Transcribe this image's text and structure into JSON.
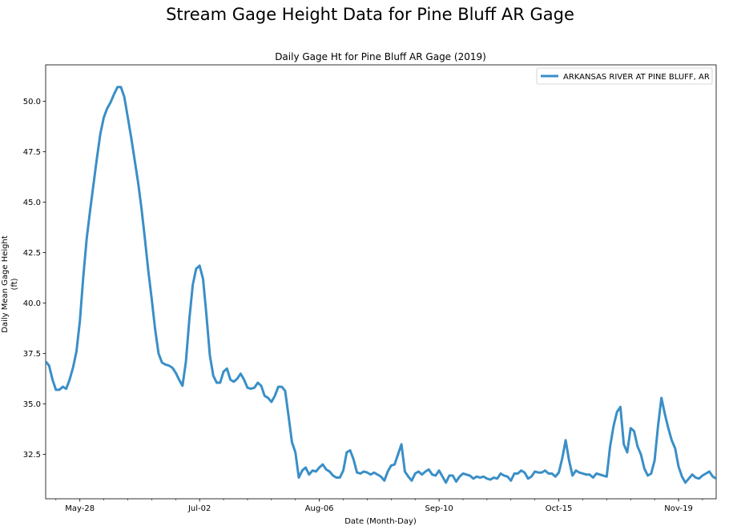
{
  "figure": {
    "suptitle": "Stream Gage Height Data for Pine Bluff AR Gage"
  },
  "chart_data": {
    "type": "line",
    "title": "Daily Gage Ht for Pine Bluff AR Gage (2019)",
    "xlabel": "Date (Month-Day)",
    "ylabel": "Daily Mean Gage Height\n(ft)",
    "xlim": [
      "2019-05-18",
      "2019-11-30"
    ],
    "ylim": [
      30.3,
      51.8
    ],
    "xticks": [
      {
        "date": "2019-05-28",
        "label": "May-28"
      },
      {
        "date": "2019-07-02",
        "label": "Jul-02"
      },
      {
        "date": "2019-08-06",
        "label": "Aug-06"
      },
      {
        "date": "2019-09-10",
        "label": "Sep-10"
      },
      {
        "date": "2019-10-15",
        "label": "Oct-15"
      },
      {
        "date": "2019-11-19",
        "label": "Nov-19"
      }
    ],
    "yticks": [
      32.5,
      35.0,
      37.5,
      40.0,
      42.5,
      45.0,
      47.5,
      50.0
    ],
    "ytick_labels": [
      "32.5",
      "35.0",
      "37.5",
      "40.0",
      "42.5",
      "45.0",
      "47.5",
      "50.0"
    ],
    "grid": false,
    "legend": "top-right",
    "series": [
      {
        "name": "ARKANSAS RIVER AT PINE BLUFF, AR",
        "color": "#3a8fc7",
        "start_date": "2019-05-18",
        "values": [
          37.1,
          36.9,
          36.2,
          35.7,
          35.7,
          35.85,
          35.75,
          36.2,
          36.8,
          37.6,
          39.1,
          41.3,
          43.2,
          44.6,
          45.9,
          47.2,
          48.4,
          49.2,
          49.65,
          49.95,
          50.35,
          50.7,
          50.7,
          50.2,
          49.2,
          48.2,
          47.1,
          46.0,
          44.7,
          43.2,
          41.6,
          40.2,
          38.7,
          37.5,
          37.05,
          36.95,
          36.9,
          36.8,
          36.55,
          36.2,
          35.9,
          37.1,
          39.2,
          40.9,
          41.7,
          41.85,
          41.2,
          39.4,
          37.4,
          36.4,
          36.05,
          36.05,
          36.6,
          36.75,
          36.2,
          36.1,
          36.25,
          36.5,
          36.2,
          35.8,
          35.75,
          35.8,
          36.05,
          35.9,
          35.4,
          35.3,
          35.1,
          35.4,
          35.85,
          35.85,
          35.65,
          34.4,
          33.1,
          32.6,
          31.35,
          31.7,
          31.85,
          31.5,
          31.7,
          31.65,
          31.85,
          32.0,
          31.75,
          31.65,
          31.45,
          31.35,
          31.35,
          31.7,
          32.6,
          32.7,
          32.25,
          31.6,
          31.55,
          31.65,
          31.6,
          31.5,
          31.6,
          31.5,
          31.4,
          31.2,
          31.65,
          31.95,
          32.0,
          32.5,
          33.0,
          31.65,
          31.4,
          31.2,
          31.55,
          31.65,
          31.5,
          31.65,
          31.75,
          31.5,
          31.45,
          31.7,
          31.4,
          31.1,
          31.45,
          31.45,
          31.15,
          31.4,
          31.55,
          31.5,
          31.45,
          31.3,
          31.4,
          31.35,
          31.4,
          31.3,
          31.25,
          31.35,
          31.3,
          31.55,
          31.45,
          31.4,
          31.2,
          31.55,
          31.55,
          31.7,
          31.6,
          31.3,
          31.4,
          31.65,
          31.6,
          31.6,
          31.7,
          31.55,
          31.55,
          31.4,
          31.6,
          32.3,
          33.2,
          32.2,
          31.45,
          31.7,
          31.6,
          31.55,
          31.5,
          31.5,
          31.35,
          31.55,
          31.5,
          31.45,
          31.4,
          32.9,
          33.9,
          34.6,
          34.85,
          33.0,
          32.6,
          33.8,
          33.65,
          32.9,
          32.5,
          31.8,
          31.45,
          31.55,
          32.2,
          33.9,
          35.3,
          34.5,
          33.8,
          33.2,
          32.8,
          31.9,
          31.4,
          31.1,
          31.3,
          31.5,
          31.35,
          31.3,
          31.45,
          31.55,
          31.65,
          31.4,
          31.3,
          31.55,
          31.5,
          31.55,
          31.6,
          31.95
        ]
      }
    ]
  }
}
